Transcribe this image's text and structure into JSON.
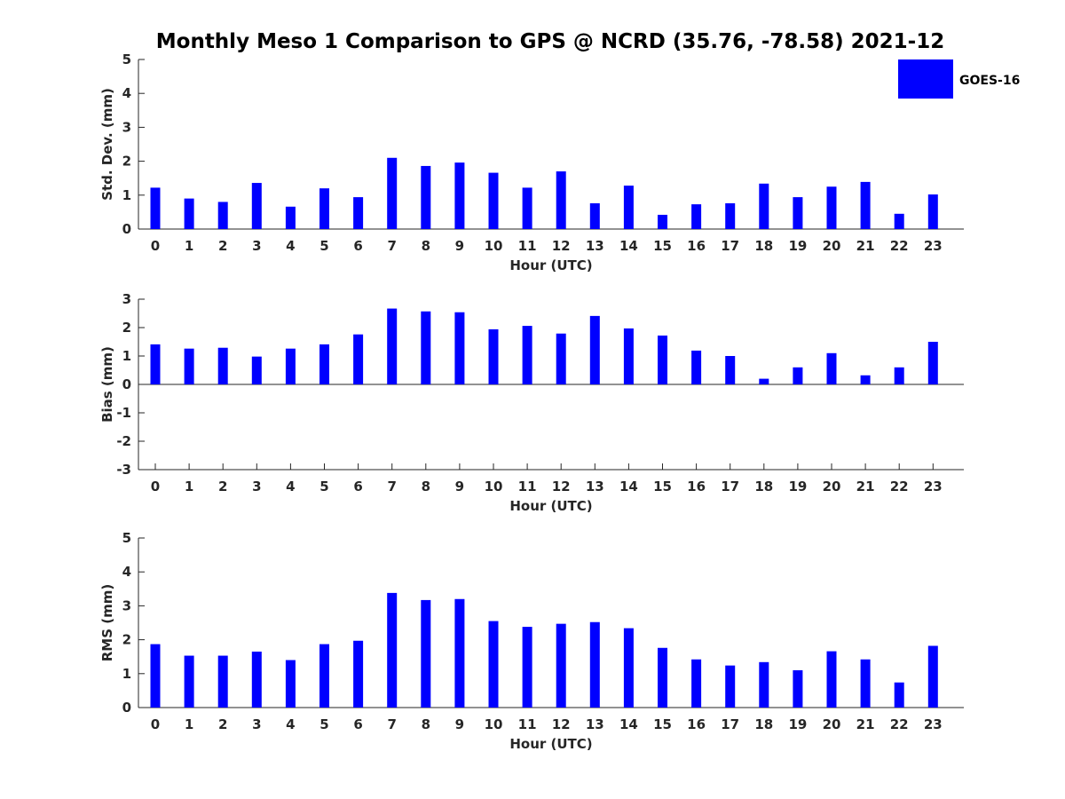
{
  "title": "Monthly Meso 1 Comparison to GPS @ NCRD (35.76, -78.58) 2021-12",
  "legend": {
    "label": "GOES-16",
    "color": "#0000ff"
  },
  "chart_data": [
    {
      "type": "bar",
      "xlabel": "Hour (UTC)",
      "ylabel": "Std. Dev. (mm)",
      "ylim": [
        0,
        5
      ],
      "yticks": [
        "0",
        "1",
        "2",
        "3",
        "4",
        "5"
      ],
      "categories": [
        "0",
        "1",
        "2",
        "3",
        "4",
        "5",
        "6",
        "7",
        "8",
        "9",
        "10",
        "11",
        "12",
        "13",
        "14",
        "15",
        "16",
        "17",
        "18",
        "19",
        "20",
        "21",
        "22",
        "23"
      ],
      "series": [
        {
          "name": "GOES-16",
          "color": "#0000ff",
          "values": [
            1.22,
            0.9,
            0.8,
            1.36,
            0.66,
            1.2,
            0.94,
            2.1,
            1.86,
            1.96,
            1.66,
            1.22,
            1.7,
            0.76,
            1.28,
            0.42,
            0.73,
            0.76,
            1.34,
            0.94,
            1.25,
            1.39,
            0.45,
            1.02
          ]
        }
      ]
    },
    {
      "type": "bar",
      "xlabel": "Hour (UTC)",
      "ylabel": "Bias (mm)",
      "ylim": [
        -3,
        3
      ],
      "yticks": [
        "-3",
        "-2",
        "-1",
        "0",
        "1",
        "2",
        "3"
      ],
      "categories": [
        "0",
        "1",
        "2",
        "3",
        "4",
        "5",
        "6",
        "7",
        "8",
        "9",
        "10",
        "11",
        "12",
        "13",
        "14",
        "15",
        "16",
        "17",
        "18",
        "19",
        "20",
        "21",
        "22",
        "23"
      ],
      "series": [
        {
          "name": "GOES-16",
          "color": "#0000ff",
          "values": [
            1.41,
            1.26,
            1.29,
            0.98,
            1.26,
            1.41,
            1.76,
            2.67,
            2.57,
            2.54,
            1.94,
            2.06,
            1.79,
            2.41,
            1.97,
            1.72,
            1.19,
            1.0,
            0.2,
            0.6,
            1.1,
            0.32,
            0.6,
            1.5
          ]
        }
      ]
    },
    {
      "type": "bar",
      "xlabel": "Hour (UTC)",
      "ylabel": "RMS (mm)",
      "ylim": [
        0,
        5
      ],
      "yticks": [
        "0",
        "1",
        "2",
        "3",
        "4",
        "5"
      ],
      "categories": [
        "0",
        "1",
        "2",
        "3",
        "4",
        "5",
        "6",
        "7",
        "8",
        "9",
        "10",
        "11",
        "12",
        "13",
        "14",
        "15",
        "16",
        "17",
        "18",
        "19",
        "20",
        "21",
        "22",
        "23"
      ],
      "series": [
        {
          "name": "GOES-16",
          "color": "#0000ff",
          "values": [
            1.87,
            1.53,
            1.53,
            1.65,
            1.4,
            1.87,
            1.97,
            3.38,
            3.17,
            3.2,
            2.55,
            2.38,
            2.47,
            2.52,
            2.34,
            1.76,
            1.42,
            1.24,
            1.34,
            1.1,
            1.66,
            1.42,
            0.74,
            1.82
          ]
        }
      ]
    }
  ]
}
